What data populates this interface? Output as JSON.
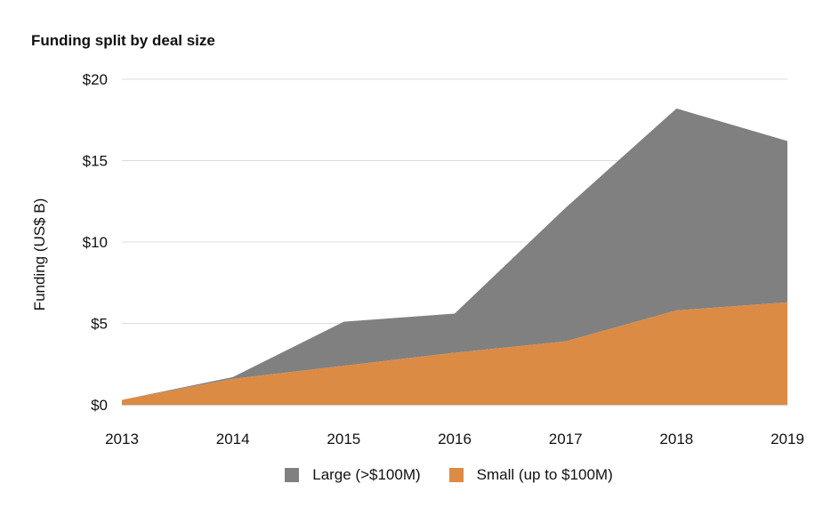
{
  "chart_data": {
    "type": "area",
    "stacked": true,
    "title": "Funding split by deal size",
    "ylabel": "Funding (US$ B)",
    "xlabel": "",
    "x": [
      "2013",
      "2014",
      "2015",
      "2016",
      "2017",
      "2018",
      "2019"
    ],
    "ylim": [
      0,
      20
    ],
    "yticks": [
      "$0",
      "$5",
      "$10",
      "$15",
      "$20"
    ],
    "grid": true,
    "legend_position": "bottom",
    "series": [
      {
        "name": "Small (up to $100M)",
        "color": "#dc8b45",
        "values": [
          0.3,
          1.6,
          2.4,
          3.2,
          3.9,
          5.8,
          6.3
        ]
      },
      {
        "name": "Large (>$100M)",
        "color": "#808080",
        "values": [
          0.0,
          0.1,
          2.7,
          2.4,
          8.2,
          12.4,
          9.9
        ]
      }
    ],
    "legend": [
      {
        "name": "Large (>$100M)",
        "color": "#808080"
      },
      {
        "name": "Small (up to $100M)",
        "color": "#dc8b45"
      }
    ]
  }
}
